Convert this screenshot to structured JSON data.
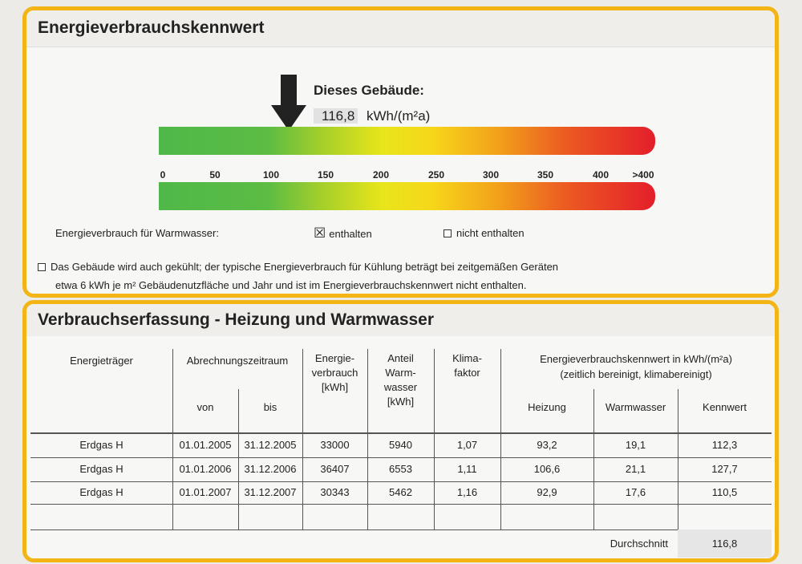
{
  "section1": {
    "title": "Energieverbrauchskennwert",
    "this_building_label": "Dieses Gebäude:",
    "value": "116,8",
    "unit": "kWh/(m²a)",
    "value_numeric": 116.8,
    "scale_ticks": [
      "0",
      "50",
      "100",
      "150",
      "200",
      "250",
      "300",
      "350",
      "400",
      ">400"
    ],
    "scale_colors": [
      "#4fb848",
      "#e8e51b",
      "#e41e2b"
    ],
    "warmwater_label": "Energieverbrauch für Warmwasser:",
    "opt_included": "enthalten",
    "opt_included_checked": true,
    "opt_not_included": "nicht enthalten",
    "opt_not_included_checked": false,
    "cooling_checked": false,
    "cooling_line1": "Das Gebäude wird auch gekühlt; der typische Energieverbrauch für Kühlung beträgt bei zeitgemäßen Geräten",
    "cooling_line2": "etwa 6 kWh je m² Gebäudenutzfläche und Jahr und ist im Energieverbrauchskennwert nicht enthalten."
  },
  "section2": {
    "title": "Verbrauchserfassung - Heizung und Warmwasser",
    "headers": {
      "carrier": "Energieträger",
      "period": "Abrechnungszeitraum",
      "from": "von",
      "to": "bis",
      "consumption": "Energie-\nverbrauch\n[kWh]",
      "ww_share": "Anteil\nWarm-\nwasser\n[kWh]",
      "climate": "Klima-\nfaktor",
      "index": "Energieverbrauchskennwert in kWh/(m²a)",
      "index_sub": "(zeitlich bereinigt, klimabereinigt)",
      "heating": "Heizung",
      "warmwater": "Warmwasser",
      "kennwert": "Kennwert"
    },
    "rows": [
      [
        "Erdgas H",
        "01.01.2005",
        "31.12.2005",
        "33000",
        "5940",
        "1,07",
        "93,2",
        "19,1",
        "112,3"
      ],
      [
        "Erdgas H",
        "01.01.2006",
        "31.12.2006",
        "36407",
        "6553",
        "1,11",
        "106,6",
        "21,1",
        "127,7"
      ],
      [
        "Erdgas H",
        "01.01.2007",
        "31.12.2007",
        "30343",
        "5462",
        "1,16",
        "92,9",
        "17,6",
        "110,5"
      ]
    ],
    "average_label": "Durchschnitt",
    "average_value": "116,8"
  },
  "accent": "#f2b515"
}
